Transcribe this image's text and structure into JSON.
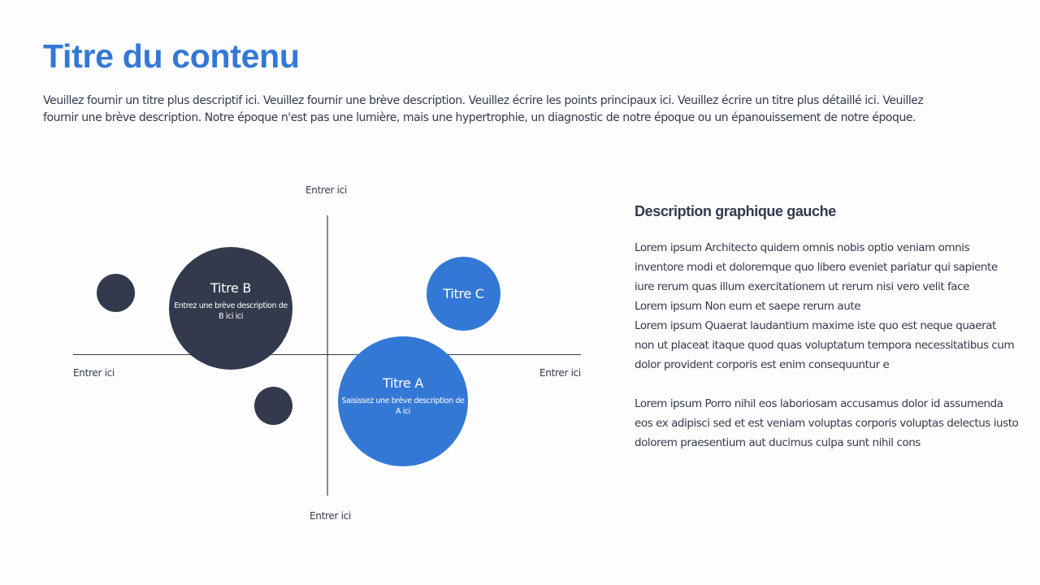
{
  "title": "Titre du contenu",
  "intro": "Veuillez fournir un titre plus descriptif ici. Veuillez fournir une brève description. Veuillez écrire les points principaux ici. Veuillez écrire un titre plus détaillé ici. Veuillez fournir une brève description. Notre époque n'est pas une lumière, mais une hypertrophie, un diagnostic de notre époque ou un épanouissement de notre époque.",
  "diagram": {
    "axis_labels": {
      "top": "Entrer ici",
      "bottom": "Entrer ici",
      "left": "Entrer ici",
      "right": "Entrer ici"
    },
    "bubbles": [
      {
        "title": "Titre B",
        "description": "Entrez une brève description de B ici ici",
        "color": "#333a4d"
      },
      {
        "title": "Titre C",
        "description": "",
        "color": "#3478d6"
      },
      {
        "title": "Titre A",
        "description": "Saisissez une brève description de A ici",
        "color": "#3478d6"
      }
    ],
    "colors": {
      "dark": "#333a4d",
      "blue": "#3478d6"
    }
  },
  "right": {
    "heading": "Description graphique gauche",
    "lines": [
      "Lorem ipsum Architecto quidem omnis nobis optio veniam omnis",
      "inventore modi et doloremque quo libero eveniet pariatur qui sapiente",
      "iure rerum quas illum exercitationem ut rerum nisi vero velit face",
      "Lorem ipsum Non eum et saepe rerum aute",
      "Lorem ipsum Quaerat laudantium maxime iste quo est neque quaerat",
      "non ut placeat itaque quod quas voluptatum tempora necessitatibus cum",
      "dolor provident corporis est enim consequuntur e",
      "Lorem ipsum Porro nihil eos laboriosam accusamus dolor id assumenda",
      "eos ex adipisci sed et est veniam voluptas corporis voluptas delectus iusto",
      "dolorem praesentium aut ducimus culpa sunt nihil cons"
    ]
  }
}
